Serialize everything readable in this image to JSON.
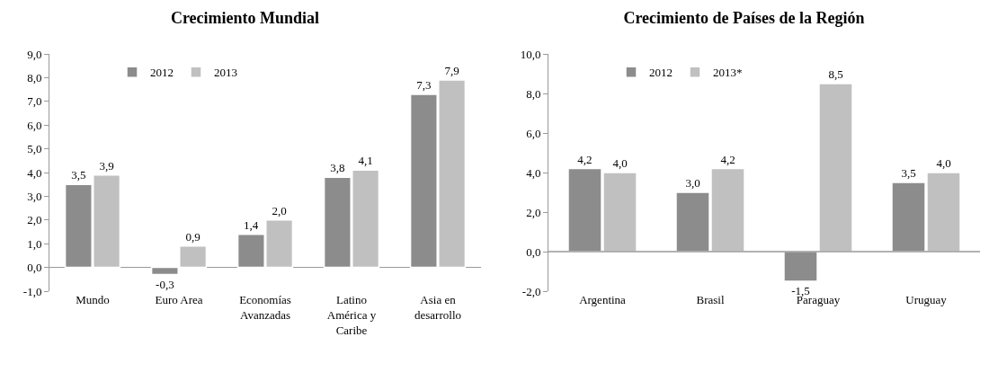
{
  "chart_data": [
    {
      "type": "bar",
      "title": "Crecimiento Mundial",
      "categories": [
        "Mundo",
        "Euro Area",
        "Economías Avanzadas",
        "Latino América y Caribe",
        "Asia en desarrollo"
      ],
      "series": [
        {
          "name": "2012",
          "color": "#8c8c8c",
          "values": [
            3.5,
            -0.3,
            1.4,
            3.8,
            7.3
          ],
          "value_labels": [
            "3,5",
            "-0,3",
            "1,4",
            "3,8",
            "7,3"
          ]
        },
        {
          "name": "2013",
          "color": "#c0c0c0",
          "values": [
            3.9,
            0.9,
            2.0,
            4.1,
            7.9
          ],
          "value_labels": [
            "3,9",
            "0,9",
            "2,0",
            "4,1",
            "7,9"
          ]
        }
      ],
      "ylim": [
        -1,
        9
      ],
      "yticks": [
        {
          "value": -1,
          "label": "-1,0"
        },
        {
          "value": 0,
          "label": "0,0"
        },
        {
          "value": 1,
          "label": "1,0"
        },
        {
          "value": 2,
          "label": "2,0"
        },
        {
          "value": 3,
          "label": "3,0"
        },
        {
          "value": 4,
          "label": "4,0"
        },
        {
          "value": 5,
          "label": "5,0"
        },
        {
          "value": 6,
          "label": "6,0"
        },
        {
          "value": 7,
          "label": "7,0"
        },
        {
          "value": 8,
          "label": "8,0"
        },
        {
          "value": 9,
          "label": "9,0"
        }
      ],
      "grid": false,
      "legend": "top left"
    },
    {
      "type": "bar",
      "title": "Crecimiento de Países de la Región",
      "categories": [
        "Argentina",
        "Brasil",
        "Paraguay",
        "Uruguay"
      ],
      "series": [
        {
          "name": "2012",
          "color": "#8c8c8c",
          "values": [
            4.2,
            3.0,
            -1.5,
            3.5
          ],
          "value_labels": [
            "4,2",
            "3,0",
            "-1,5",
            "3,5"
          ]
        },
        {
          "name": "2013*",
          "color": "#c0c0c0",
          "values": [
            4.0,
            4.2,
            8.5,
            4.0
          ],
          "value_labels": [
            "4,0",
            "4,2",
            "8,5",
            "4,0"
          ]
        }
      ],
      "ylim": [
        -2,
        10
      ],
      "yticks": [
        {
          "value": -2,
          "label": "-2,0"
        },
        {
          "value": 0,
          "label": "0,0"
        },
        {
          "value": 2,
          "label": "2,0"
        },
        {
          "value": 4,
          "label": "4,0"
        },
        {
          "value": 6,
          "label": "6,0"
        },
        {
          "value": 8,
          "label": "8,0"
        },
        {
          "value": 10,
          "label": "10,0"
        }
      ],
      "ref_lines": [
        {
          "axis": "y",
          "value": 0,
          "color": "#999999"
        }
      ],
      "grid": false,
      "legend": "top left"
    }
  ]
}
